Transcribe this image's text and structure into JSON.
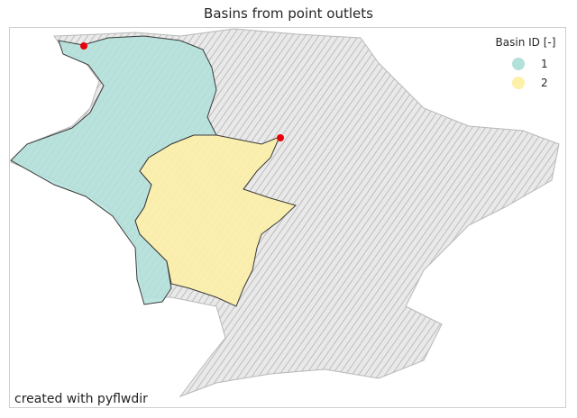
{
  "title": "Basins from point outlets",
  "credit": "created with pyflwdir",
  "legend": {
    "title": "Basin ID [-]",
    "items": [
      {
        "label": "1",
        "color": "#b2e0da"
      },
      {
        "label": "2",
        "color": "#fdf0a8"
      }
    ]
  },
  "colors": {
    "terrain": "#c4c4c4",
    "terrain_light": "#e8e8e8",
    "outlet": "#e8000b",
    "basin_edge": "#3a3a3a"
  }
}
